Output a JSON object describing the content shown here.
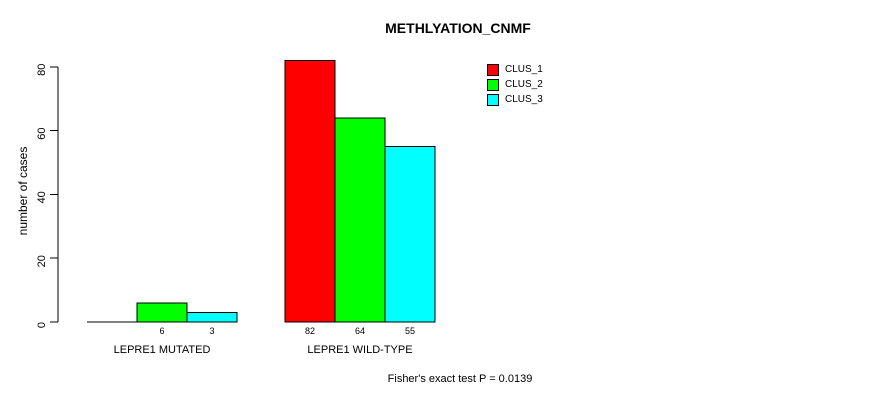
{
  "chart_data": {
    "type": "bar",
    "title": "METHLYATION_CNMF",
    "ylabel": "number of cases",
    "xlabel": "",
    "ylim": [
      0,
      80
    ],
    "yticks": [
      0,
      20,
      40,
      60,
      80
    ],
    "categories": [
      "LEPRE1 MUTATED",
      "LEPRE1 WILD-TYPE"
    ],
    "series": [
      {
        "name": "CLUS_1",
        "color": "#FF0000",
        "values": [
          0,
          82
        ]
      },
      {
        "name": "CLUS_2",
        "color": "#00FF00",
        "values": [
          6,
          64
        ]
      },
      {
        "name": "CLUS_3",
        "color": "#00FFFF",
        "values": [
          3,
          55
        ]
      }
    ],
    "bar_value_labels_shown": true,
    "zero_value_labels_hidden": true,
    "annotation": "Fisher's exact test P = 0.0139",
    "legend_position": "top-right",
    "grid": false,
    "background_color": "#FFFFFF",
    "axis_color": "#000000",
    "bar_border_color": "#000000"
  }
}
